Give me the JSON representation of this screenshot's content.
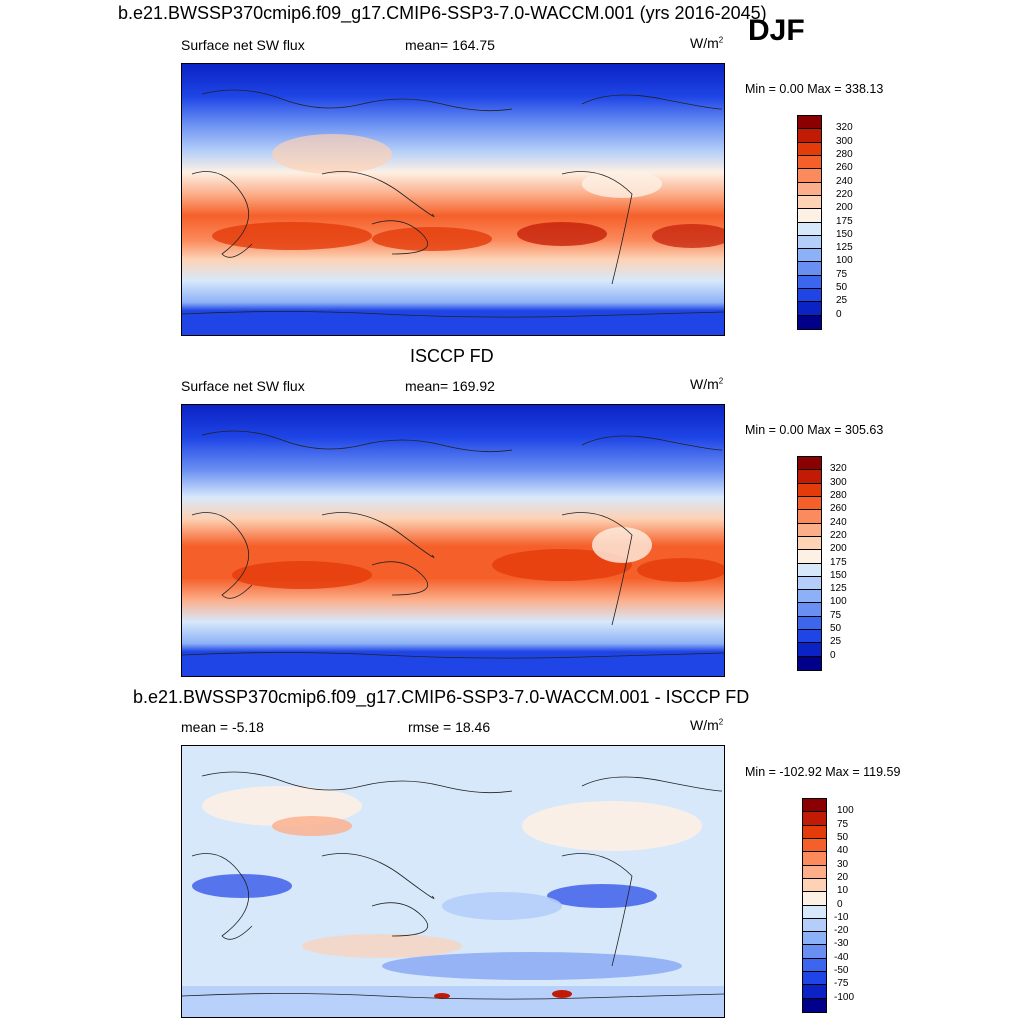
{
  "header": {
    "title": "b.e21.BWSSP370cmip6.f09_g17.CMIP6-SSP3-7.0-WACCM.001 (yrs 2016-2045)",
    "season": "DJF"
  },
  "panels": [
    {
      "id": "model",
      "variable": "Surface net SW flux",
      "stat_label": "mean= 164.75",
      "units_base": "W/m",
      "units_sup": "2",
      "range_text": "Min =   0.00 Max = 338.13",
      "colorbar_labels": [
        "320",
        "300",
        "280",
        "260",
        "240",
        "220",
        "200",
        "175",
        "150",
        "125",
        "100",
        "75",
        "50",
        "25",
        "0"
      ],
      "colorbar_colors": [
        "#8b0000",
        "#c21b05",
        "#e33b0a",
        "#f5602a",
        "#fb8a5c",
        "#fcae8a",
        "#fdd2b5",
        "#fdf0e4",
        "#d7e8fb",
        "#b4cef9",
        "#8db1f6",
        "#6a8ff2",
        "#3d66ee",
        "#1f45e6",
        "#0b23c4",
        "#00008b"
      ],
      "chart_data": {
        "type": "heatmap",
        "title": "Surface net SW flux",
        "description_units": "W/m2",
        "mean": 164.75,
        "min": 0.0,
        "max": 338.13,
        "levels": [
          0,
          25,
          50,
          75,
          100,
          125,
          150,
          175,
          200,
          220,
          240,
          260,
          280,
          300,
          320
        ]
      }
    },
    {
      "id": "obs",
      "subtitle": "ISCCP FD",
      "variable": "Surface net SW flux",
      "stat_label": "mean= 169.92",
      "units_base": "W/m",
      "units_sup": "2",
      "range_text": "Min =   0.00 Max = 305.63",
      "colorbar_labels": [
        "320",
        "300",
        "280",
        "260",
        "240",
        "220",
        "200",
        "175",
        "150",
        "125",
        "100",
        "75",
        "50",
        "25",
        "0"
      ],
      "colorbar_colors": [
        "#8b0000",
        "#c21b05",
        "#e33b0a",
        "#f5602a",
        "#fb8a5c",
        "#fcae8a",
        "#fdd2b5",
        "#fdf0e4",
        "#d7e8fb",
        "#b4cef9",
        "#8db1f6",
        "#6a8ff2",
        "#3d66ee",
        "#1f45e6",
        "#0b23c4",
        "#00008b"
      ],
      "chart_data": {
        "type": "heatmap",
        "title": "ISCCP FD Surface net SW flux",
        "mean": 169.92,
        "min": 0.0,
        "max": 305.63,
        "levels": [
          0,
          25,
          50,
          75,
          100,
          125,
          150,
          175,
          200,
          220,
          240,
          260,
          280,
          300,
          320
        ]
      }
    },
    {
      "id": "diff",
      "subtitle": "b.e21.BWSSP370cmip6.f09_g17.CMIP6-SSP3-7.0-WACCM.001 - ISCCP FD",
      "stat_label": "mean =  -5.18",
      "rmse_label": "rmse =  18.46",
      "units_base": "W/m",
      "units_sup": "2",
      "range_text": "Min = -102.92 Max = 119.59",
      "colorbar_labels": [
        "100",
        "75",
        "50",
        "40",
        "30",
        "20",
        "10",
        "0",
        "-10",
        "-20",
        "-30",
        "-40",
        "-50",
        "-75",
        "-100"
      ],
      "colorbar_colors": [
        "#8b0000",
        "#c21b05",
        "#e33b0a",
        "#f5602a",
        "#fb8a5c",
        "#fcae8a",
        "#fdd2b5",
        "#fdf0e4",
        "#d7e8fb",
        "#b4cef9",
        "#8db1f6",
        "#6a8ff2",
        "#3d66ee",
        "#1f45e6",
        "#0b23c4",
        "#00008b"
      ],
      "chart_data": {
        "type": "heatmap",
        "title": "Model - ISCCP FD difference",
        "mean": -5.18,
        "rmse": 18.46,
        "min": -102.92,
        "max": 119.59,
        "levels": [
          -100,
          -75,
          -50,
          -40,
          -30,
          -20,
          -10,
          0,
          10,
          20,
          30,
          40,
          50,
          75,
          100
        ]
      }
    }
  ]
}
